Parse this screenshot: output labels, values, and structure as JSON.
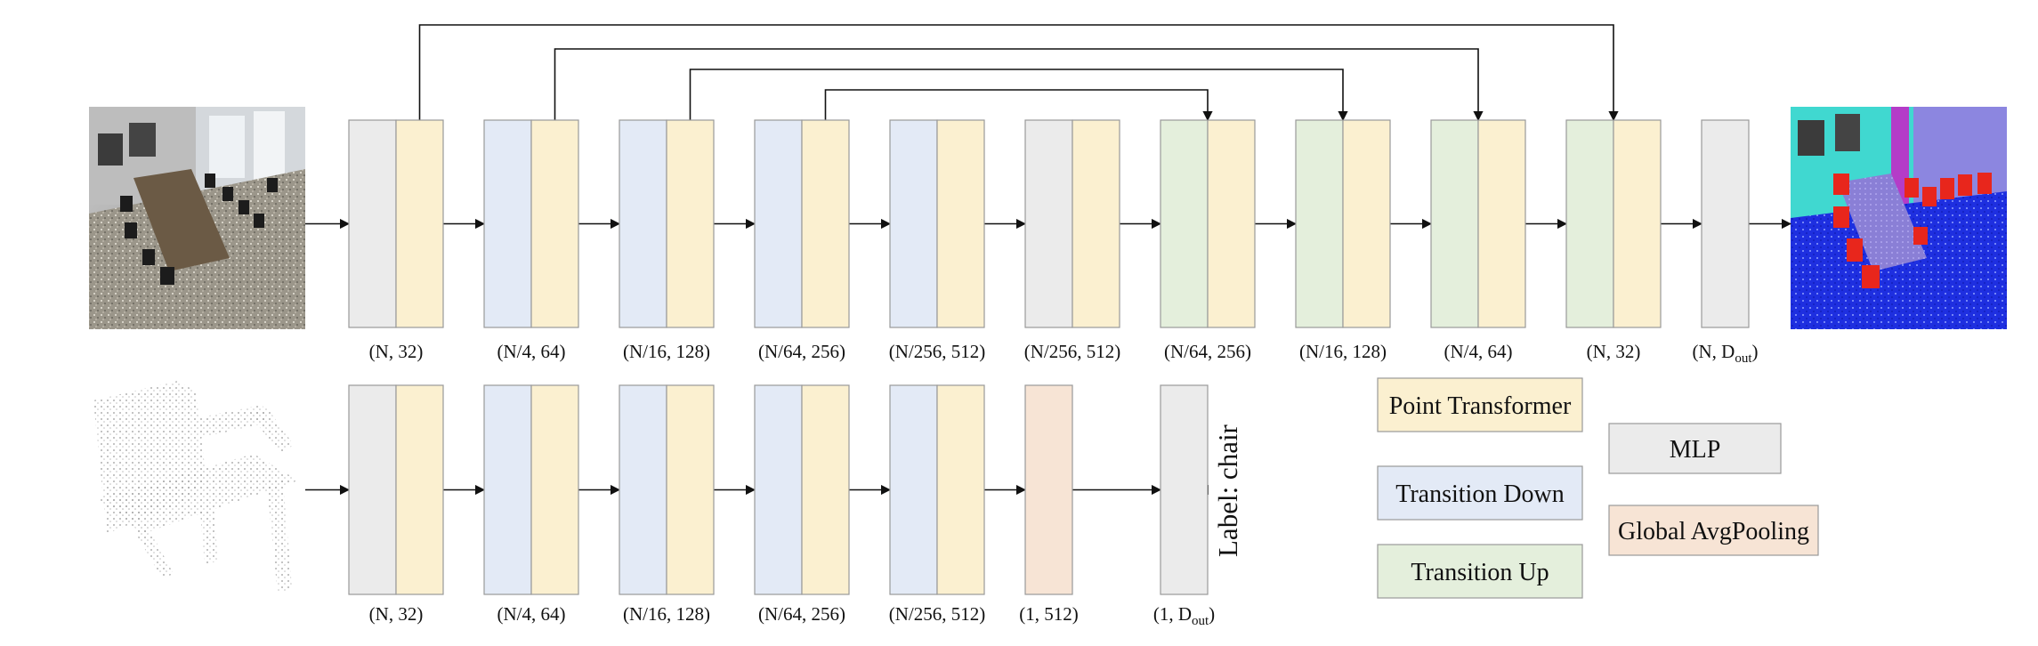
{
  "colors": {
    "mlp": "#ebebeb",
    "point_transformer": "#fbf0d0",
    "transition_down": "#e3eaf6",
    "transition_up": "#e4efdc",
    "global_avgpooling": "#f7e4d5",
    "stroke": "#999999",
    "arrow": "#111111"
  },
  "segmentation": {
    "stages": [
      {
        "types": [
          "mlp",
          "point_transformer"
        ],
        "label": "(N, 32)"
      },
      {
        "types": [
          "transition_down",
          "point_transformer"
        ],
        "label": "(N/4, 64)"
      },
      {
        "types": [
          "transition_down",
          "point_transformer"
        ],
        "label": "(N/16, 128)"
      },
      {
        "types": [
          "transition_down",
          "point_transformer"
        ],
        "label": "(N/64, 256)"
      },
      {
        "types": [
          "transition_down",
          "point_transformer"
        ],
        "label": "(N/256, 512)"
      },
      {
        "types": [
          "mlp",
          "point_transformer"
        ],
        "label": "(N/256, 512)"
      },
      {
        "types": [
          "transition_up",
          "point_transformer"
        ],
        "label": "(N/64, 256)"
      },
      {
        "types": [
          "transition_up",
          "point_transformer"
        ],
        "label": "(N/16, 128)"
      },
      {
        "types": [
          "transition_up",
          "point_transformer"
        ],
        "label": "(N/4, 64)"
      },
      {
        "types": [
          "transition_up",
          "point_transformer"
        ],
        "label": "(N, 32)"
      },
      {
        "types": [
          "mlp"
        ],
        "label_main": "(N, D",
        "label_sub": "out",
        "label_end": ")"
      }
    ],
    "skip_connections": [
      [
        0,
        9
      ],
      [
        1,
        8
      ],
      [
        2,
        7
      ],
      [
        3,
        6
      ]
    ]
  },
  "classification": {
    "stages": [
      {
        "types": [
          "mlp",
          "point_transformer"
        ],
        "label": "(N, 32)"
      },
      {
        "types": [
          "transition_down",
          "point_transformer"
        ],
        "label": "(N/4, 64)"
      },
      {
        "types": [
          "transition_down",
          "point_transformer"
        ],
        "label": "(N/16, 128)"
      },
      {
        "types": [
          "transition_down",
          "point_transformer"
        ],
        "label": "(N/64, 256)"
      },
      {
        "types": [
          "transition_down",
          "point_transformer"
        ],
        "label": "(N/256, 512)"
      },
      {
        "types": [
          "global_avgpooling"
        ],
        "label": "(1, 512)"
      },
      {
        "types": [
          "mlp"
        ],
        "label_main": "(1, D",
        "label_sub": "out",
        "label_end": ")"
      }
    ],
    "output_label": "Label: chair"
  },
  "legend": [
    {
      "type": "point_transformer",
      "label": "Point Transformer"
    },
    {
      "type": "transition_down",
      "label": "Transition Down"
    },
    {
      "type": "transition_up",
      "label": "Transition Up"
    },
    {
      "type": "mlp",
      "label": "MLP"
    },
    {
      "type": "global_avgpooling",
      "label": "Global AvgPooling"
    }
  ]
}
